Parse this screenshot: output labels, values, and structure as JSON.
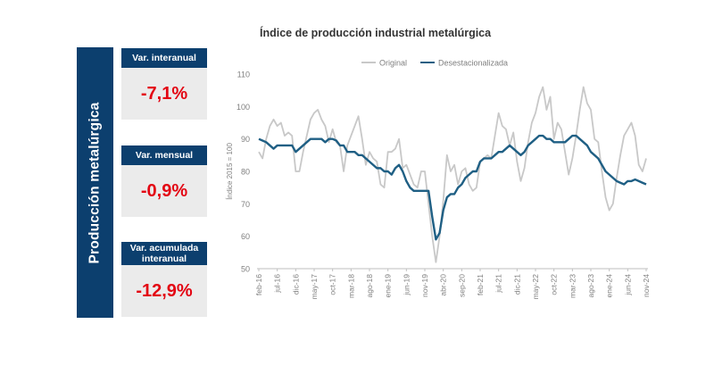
{
  "side_label": "Producción metalúrgica",
  "kpis": [
    {
      "label": "Var. interanual",
      "value": "-7,1%"
    },
    {
      "label": "Var. mensual",
      "value": "-0,9%"
    },
    {
      "label": "Var. acumulada interanual",
      "value": "-12,9%"
    }
  ],
  "colors": {
    "navy": "#0c3f6e",
    "red": "#e30613",
    "original": "#c8c8c8",
    "sa": "#1f5f84"
  },
  "chart_data": {
    "type": "line",
    "title": "Índice de producción industrial metalúrgica",
    "ylabel": "Índice 2015 = 100",
    "xlabel": "",
    "ylim": [
      50,
      110
    ],
    "yticks": [
      50,
      60,
      70,
      80,
      90,
      100,
      110
    ],
    "x_start": "feb-16",
    "n_points": 106,
    "x_ticks": [
      {
        "index": 0,
        "label": "feb-16"
      },
      {
        "index": 5,
        "label": "jul-16"
      },
      {
        "index": 10,
        "label": "dic-16"
      },
      {
        "index": 15,
        "label": "may-17"
      },
      {
        "index": 20,
        "label": "oct-17"
      },
      {
        "index": 25,
        "label": "mar-18"
      },
      {
        "index": 30,
        "label": "ago-18"
      },
      {
        "index": 35,
        "label": "ene-19"
      },
      {
        "index": 40,
        "label": "jun-19"
      },
      {
        "index": 45,
        "label": "nov-19"
      },
      {
        "index": 50,
        "label": "abr-20"
      },
      {
        "index": 55,
        "label": "sep-20"
      },
      {
        "index": 60,
        "label": "feb-21"
      },
      {
        "index": 65,
        "label": "jul-21"
      },
      {
        "index": 70,
        "label": "dic-21"
      },
      {
        "index": 75,
        "label": "may-22"
      },
      {
        "index": 80,
        "label": "oct-22"
      },
      {
        "index": 85,
        "label": "mar-23"
      },
      {
        "index": 90,
        "label": "ago-23"
      },
      {
        "index": 95,
        "label": "ene-24"
      },
      {
        "index": 100,
        "label": "jun-24"
      },
      {
        "index": 105,
        "label": "nov-24"
      }
    ],
    "legend": "top",
    "series": [
      {
        "name": "Original",
        "values": [
          86,
          84,
          90,
          94,
          96,
          94,
          95,
          91,
          92,
          91,
          80,
          80,
          86,
          91,
          96,
          98,
          99,
          96,
          94,
          89,
          93,
          89,
          88,
          80,
          88,
          91,
          94,
          97,
          90,
          82,
          86,
          84,
          83,
          76,
          75,
          86,
          86,
          87,
          90,
          81,
          82,
          79,
          76,
          75,
          80,
          80,
          70,
          60,
          52,
          60,
          71,
          85,
          80,
          82,
          76,
          80,
          81,
          76,
          74,
          75,
          83,
          84,
          85,
          84,
          91,
          98,
          94,
          93,
          88,
          92,
          83,
          77,
          81,
          89,
          95,
          98,
          103,
          106,
          99,
          103,
          90,
          95,
          93,
          86,
          79,
          84,
          91,
          99,
          106,
          101,
          99,
          90,
          89,
          80,
          72,
          68,
          70,
          78,
          85,
          91,
          93,
          95,
          91,
          82,
          80,
          84
        ]
      },
      {
        "name": "Desestacionalizada",
        "values": [
          90,
          89.5,
          89,
          88,
          87,
          88,
          88,
          88,
          88,
          88,
          86,
          87,
          88,
          89,
          90,
          90,
          90,
          90,
          89,
          90,
          90,
          89.5,
          88,
          88,
          86,
          86,
          86,
          85,
          85,
          84,
          83,
          82,
          81,
          81,
          80,
          80,
          79,
          81,
          82,
          80,
          77,
          75,
          74,
          74,
          74,
          74,
          74,
          66,
          59,
          61,
          68,
          72,
          73,
          73,
          75,
          76,
          78,
          79,
          80,
          80,
          83,
          84,
          84,
          84,
          85,
          86,
          86,
          87,
          88,
          87,
          86,
          85,
          86,
          88,
          89,
          90,
          91,
          91,
          90,
          90,
          89,
          89,
          89,
          89,
          90,
          91,
          91,
          90,
          89,
          88,
          86,
          85,
          84,
          82,
          80,
          79,
          78,
          77,
          76.5,
          76,
          77,
          77,
          77.5,
          77,
          76.5,
          76
        ]
      }
    ]
  }
}
